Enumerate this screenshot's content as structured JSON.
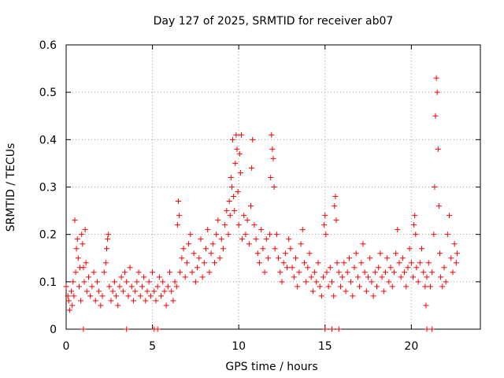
{
  "chart_data": {
    "type": "scatter",
    "title": "Day 127 of 2025, SRMTID for receiver ab07",
    "xlabel": "GPS time / hours",
    "ylabel": "SRMTID / TECUs",
    "xlim": [
      0,
      24
    ],
    "ylim": [
      0,
      0.6
    ],
    "x_ticks": [
      0,
      5,
      10,
      15,
      20
    ],
    "x_tick_labels": [
      "0",
      "5",
      "10",
      "15",
      "20"
    ],
    "y_ticks": [
      0,
      0.1,
      0.2,
      0.3,
      0.4,
      0.5,
      0.6
    ],
    "y_tick_labels": [
      "0",
      "0.1",
      "0.2",
      "0.3",
      "0.4",
      "0.5",
      "0.6"
    ],
    "grid": true,
    "marker": "plus",
    "color": "#ff0000",
    "series": [
      {
        "name": "SRMTID",
        "points": [
          [
            0.0,
            0.09
          ],
          [
            0.1,
            0.07
          ],
          [
            0.15,
            0.06
          ],
          [
            0.2,
            0.04
          ],
          [
            0.3,
            0.08
          ],
          [
            0.35,
            0.05
          ],
          [
            0.4,
            0.1
          ],
          [
            0.45,
            0.07
          ],
          [
            0.5,
            0.23
          ],
          [
            0.55,
            0.12
          ],
          [
            0.6,
            0.17
          ],
          [
            0.65,
            0.19
          ],
          [
            0.7,
            0.15
          ],
          [
            0.75,
            0.09
          ],
          [
            0.8,
            0.13
          ],
          [
            0.85,
            0.06
          ],
          [
            0.9,
            0.2
          ],
          [
            0.95,
            0.18
          ],
          [
            1.0,
            0.13
          ],
          [
            1.05,
            0.1
          ],
          [
            1.1,
            0.21
          ],
          [
            1.15,
            0.14
          ],
          [
            1.2,
            0.08
          ],
          [
            1.3,
            0.11
          ],
          [
            1.4,
            0.07
          ],
          [
            1.5,
            0.09
          ],
          [
            1.6,
            0.12
          ],
          [
            1.7,
            0.06
          ],
          [
            1.8,
            0.1
          ],
          [
            1.9,
            0.08
          ],
          [
            2.0,
            0.05
          ],
          [
            2.1,
            0.07
          ],
          [
            2.2,
            0.12
          ],
          [
            2.3,
            0.14
          ],
          [
            2.35,
            0.17
          ],
          [
            2.4,
            0.19
          ],
          [
            2.45,
            0.2
          ],
          [
            2.5,
            0.09
          ],
          [
            2.6,
            0.06
          ],
          [
            2.7,
            0.08
          ],
          [
            2.8,
            0.1
          ],
          [
            2.9,
            0.07
          ],
          [
            3.0,
            0.05
          ],
          [
            3.1,
            0.09
          ],
          [
            3.2,
            0.11
          ],
          [
            3.3,
            0.08
          ],
          [
            3.4,
            0.12
          ],
          [
            3.5,
            0.1
          ],
          [
            3.6,
            0.07
          ],
          [
            3.7,
            0.13
          ],
          [
            3.8,
            0.09
          ],
          [
            3.9,
            0.06
          ],
          [
            4.0,
            0.08
          ],
          [
            4.1,
            0.1
          ],
          [
            4.2,
            0.12
          ],
          [
            4.3,
            0.07
          ],
          [
            4.4,
            0.09
          ],
          [
            4.5,
            0.11
          ],
          [
            4.6,
            0.06
          ],
          [
            4.7,
            0.08
          ],
          [
            4.8,
            0.1
          ],
          [
            4.9,
            0.07
          ],
          [
            5.0,
            0.12
          ],
          [
            5.1,
            0.08
          ],
          [
            5.2,
            0.06
          ],
          [
            5.3,
            0.09
          ],
          [
            5.4,
            0.11
          ],
          [
            5.5,
            0.07
          ],
          [
            5.6,
            0.1
          ],
          [
            5.7,
            0.08
          ],
          [
            5.8,
            0.05
          ],
          [
            5.9,
            0.09
          ],
          [
            6.0,
            0.12
          ],
          [
            6.1,
            0.08
          ],
          [
            6.2,
            0.06
          ],
          [
            6.3,
            0.1
          ],
          [
            6.4,
            0.09
          ],
          [
            6.45,
            0.22
          ],
          [
            6.5,
            0.27
          ],
          [
            6.55,
            0.24
          ],
          [
            6.6,
            0.12
          ],
          [
            6.7,
            0.15
          ],
          [
            6.8,
            0.17
          ],
          [
            6.9,
            0.11
          ],
          [
            7.0,
            0.14
          ],
          [
            7.1,
            0.18
          ],
          [
            7.2,
            0.2
          ],
          [
            7.3,
            0.12
          ],
          [
            7.4,
            0.16
          ],
          [
            7.5,
            0.1
          ],
          [
            7.6,
            0.13
          ],
          [
            7.7,
            0.15
          ],
          [
            7.8,
            0.19
          ],
          [
            7.9,
            0.11
          ],
          [
            8.0,
            0.14
          ],
          [
            8.1,
            0.17
          ],
          [
            8.2,
            0.21
          ],
          [
            8.3,
            0.12
          ],
          [
            8.4,
            0.16
          ],
          [
            8.5,
            0.18
          ],
          [
            8.6,
            0.14
          ],
          [
            8.7,
            0.2
          ],
          [
            8.8,
            0.23
          ],
          [
            8.9,
            0.15
          ],
          [
            9.0,
            0.19
          ],
          [
            9.1,
            0.17
          ],
          [
            9.2,
            0.22
          ],
          [
            9.3,
            0.25
          ],
          [
            9.4,
            0.2
          ],
          [
            9.45,
            0.27
          ],
          [
            9.5,
            0.24
          ],
          [
            9.55,
            0.32
          ],
          [
            9.6,
            0.3
          ],
          [
            9.65,
            0.4
          ],
          [
            9.7,
            0.28
          ],
          [
            9.75,
            0.25
          ],
          [
            9.8,
            0.35
          ],
          [
            9.85,
            0.41
          ],
          [
            9.9,
            0.38
          ],
          [
            9.95,
            0.29
          ],
          [
            10.0,
            0.22
          ],
          [
            10.05,
            0.37
          ],
          [
            10.1,
            0.33
          ],
          [
            10.15,
            0.41
          ],
          [
            10.2,
            0.19
          ],
          [
            10.3,
            0.24
          ],
          [
            10.4,
            0.2
          ],
          [
            10.5,
            0.23
          ],
          [
            10.6,
            0.18
          ],
          [
            10.7,
            0.26
          ],
          [
            10.75,
            0.34
          ],
          [
            10.8,
            0.4
          ],
          [
            10.9,
            0.22
          ],
          [
            11.0,
            0.19
          ],
          [
            11.1,
            0.16
          ],
          [
            11.2,
            0.14
          ],
          [
            11.3,
            0.21
          ],
          [
            11.4,
            0.17
          ],
          [
            11.5,
            0.12
          ],
          [
            11.6,
            0.19
          ],
          [
            11.7,
            0.15
          ],
          [
            11.8,
            0.2
          ],
          [
            11.85,
            0.32
          ],
          [
            11.9,
            0.41
          ],
          [
            11.95,
            0.38
          ],
          [
            12.0,
            0.36
          ],
          [
            12.05,
            0.3
          ],
          [
            12.1,
            0.17
          ],
          [
            12.2,
            0.2
          ],
          [
            12.3,
            0.15
          ],
          [
            12.4,
            0.12
          ],
          [
            12.5,
            0.1
          ],
          [
            12.6,
            0.14
          ],
          [
            12.7,
            0.16
          ],
          [
            12.8,
            0.13
          ],
          [
            12.9,
            0.19
          ],
          [
            13.0,
            0.17
          ],
          [
            13.1,
            0.13
          ],
          [
            13.2,
            0.11
          ],
          [
            13.3,
            0.15
          ],
          [
            13.4,
            0.09
          ],
          [
            13.5,
            0.12
          ],
          [
            13.6,
            0.18
          ],
          [
            13.7,
            0.21
          ],
          [
            13.8,
            0.14
          ],
          [
            13.9,
            0.1
          ],
          [
            14.0,
            0.13
          ],
          [
            14.1,
            0.16
          ],
          [
            14.2,
            0.11
          ],
          [
            14.3,
            0.08
          ],
          [
            14.4,
            0.12
          ],
          [
            14.5,
            0.1
          ],
          [
            14.6,
            0.14
          ],
          [
            14.7,
            0.09
          ],
          [
            14.8,
            0.07
          ],
          [
            14.9,
            0.11
          ],
          [
            14.95,
            0.22
          ],
          [
            15.0,
            0.24
          ],
          [
            15.05,
            0.2
          ],
          [
            15.1,
            0.12
          ],
          [
            15.2,
            0.09
          ],
          [
            15.3,
            0.13
          ],
          [
            15.4,
            0.1
          ],
          [
            15.5,
            0.07
          ],
          [
            15.55,
            0.26
          ],
          [
            15.6,
            0.28
          ],
          [
            15.65,
            0.23
          ],
          [
            15.7,
            0.14
          ],
          [
            15.8,
            0.12
          ],
          [
            15.9,
            0.09
          ],
          [
            16.0,
            0.11
          ],
          [
            16.1,
            0.14
          ],
          [
            16.2,
            0.08
          ],
          [
            16.3,
            0.12
          ],
          [
            16.4,
            0.15
          ],
          [
            16.5,
            0.1
          ],
          [
            16.6,
            0.07
          ],
          [
            16.7,
            0.13
          ],
          [
            16.8,
            0.16
          ],
          [
            16.9,
            0.11
          ],
          [
            17.0,
            0.09
          ],
          [
            17.1,
            0.14
          ],
          [
            17.2,
            0.18
          ],
          [
            17.3,
            0.12
          ],
          [
            17.4,
            0.08
          ],
          [
            17.5,
            0.11
          ],
          [
            17.6,
            0.15
          ],
          [
            17.7,
            0.1
          ],
          [
            17.8,
            0.07
          ],
          [
            17.9,
            0.12
          ],
          [
            18.0,
            0.09
          ],
          [
            18.1,
            0.13
          ],
          [
            18.2,
            0.16
          ],
          [
            18.3,
            0.11
          ],
          [
            18.4,
            0.08
          ],
          [
            18.5,
            0.12
          ],
          [
            18.6,
            0.15
          ],
          [
            18.7,
            0.1
          ],
          [
            18.8,
            0.13
          ],
          [
            18.9,
            0.09
          ],
          [
            19.0,
            0.12
          ],
          [
            19.1,
            0.16
          ],
          [
            19.2,
            0.21
          ],
          [
            19.3,
            0.14
          ],
          [
            19.4,
            0.11
          ],
          [
            19.5,
            0.15
          ],
          [
            19.6,
            0.12
          ],
          [
            19.7,
            0.09
          ],
          [
            19.8,
            0.13
          ],
          [
            19.9,
            0.17
          ],
          [
            20.0,
            0.14
          ],
          [
            20.1,
            0.11
          ],
          [
            20.15,
            0.22
          ],
          [
            20.2,
            0.24
          ],
          [
            20.25,
            0.2
          ],
          [
            20.3,
            0.13
          ],
          [
            20.4,
            0.1
          ],
          [
            20.5,
            0.14
          ],
          [
            20.6,
            0.17
          ],
          [
            20.7,
            0.12
          ],
          [
            20.8,
            0.09
          ],
          [
            20.85,
            0.05
          ],
          [
            20.9,
            0.11
          ],
          [
            21.0,
            0.14
          ],
          [
            21.1,
            0.09
          ],
          [
            21.2,
            0.12
          ],
          [
            21.3,
            0.2
          ],
          [
            21.35,
            0.3
          ],
          [
            21.4,
            0.45
          ],
          [
            21.45,
            0.53
          ],
          [
            21.5,
            0.5
          ],
          [
            21.55,
            0.38
          ],
          [
            21.6,
            0.26
          ],
          [
            21.65,
            0.16
          ],
          [
            21.7,
            0.11
          ],
          [
            21.8,
            0.09
          ],
          [
            21.9,
            0.13
          ],
          [
            22.0,
            0.1
          ],
          [
            22.1,
            0.2
          ],
          [
            22.2,
            0.24
          ],
          [
            22.3,
            0.15
          ],
          [
            22.4,
            0.12
          ],
          [
            22.5,
            0.18
          ],
          [
            22.6,
            0.14
          ],
          [
            22.65,
            0.16
          ]
        ]
      }
    ],
    "zero_markers_x": [
      1.0,
      3.5,
      5.1,
      5.3,
      15.0,
      15.4,
      15.8,
      20.9,
      21.2
    ]
  }
}
